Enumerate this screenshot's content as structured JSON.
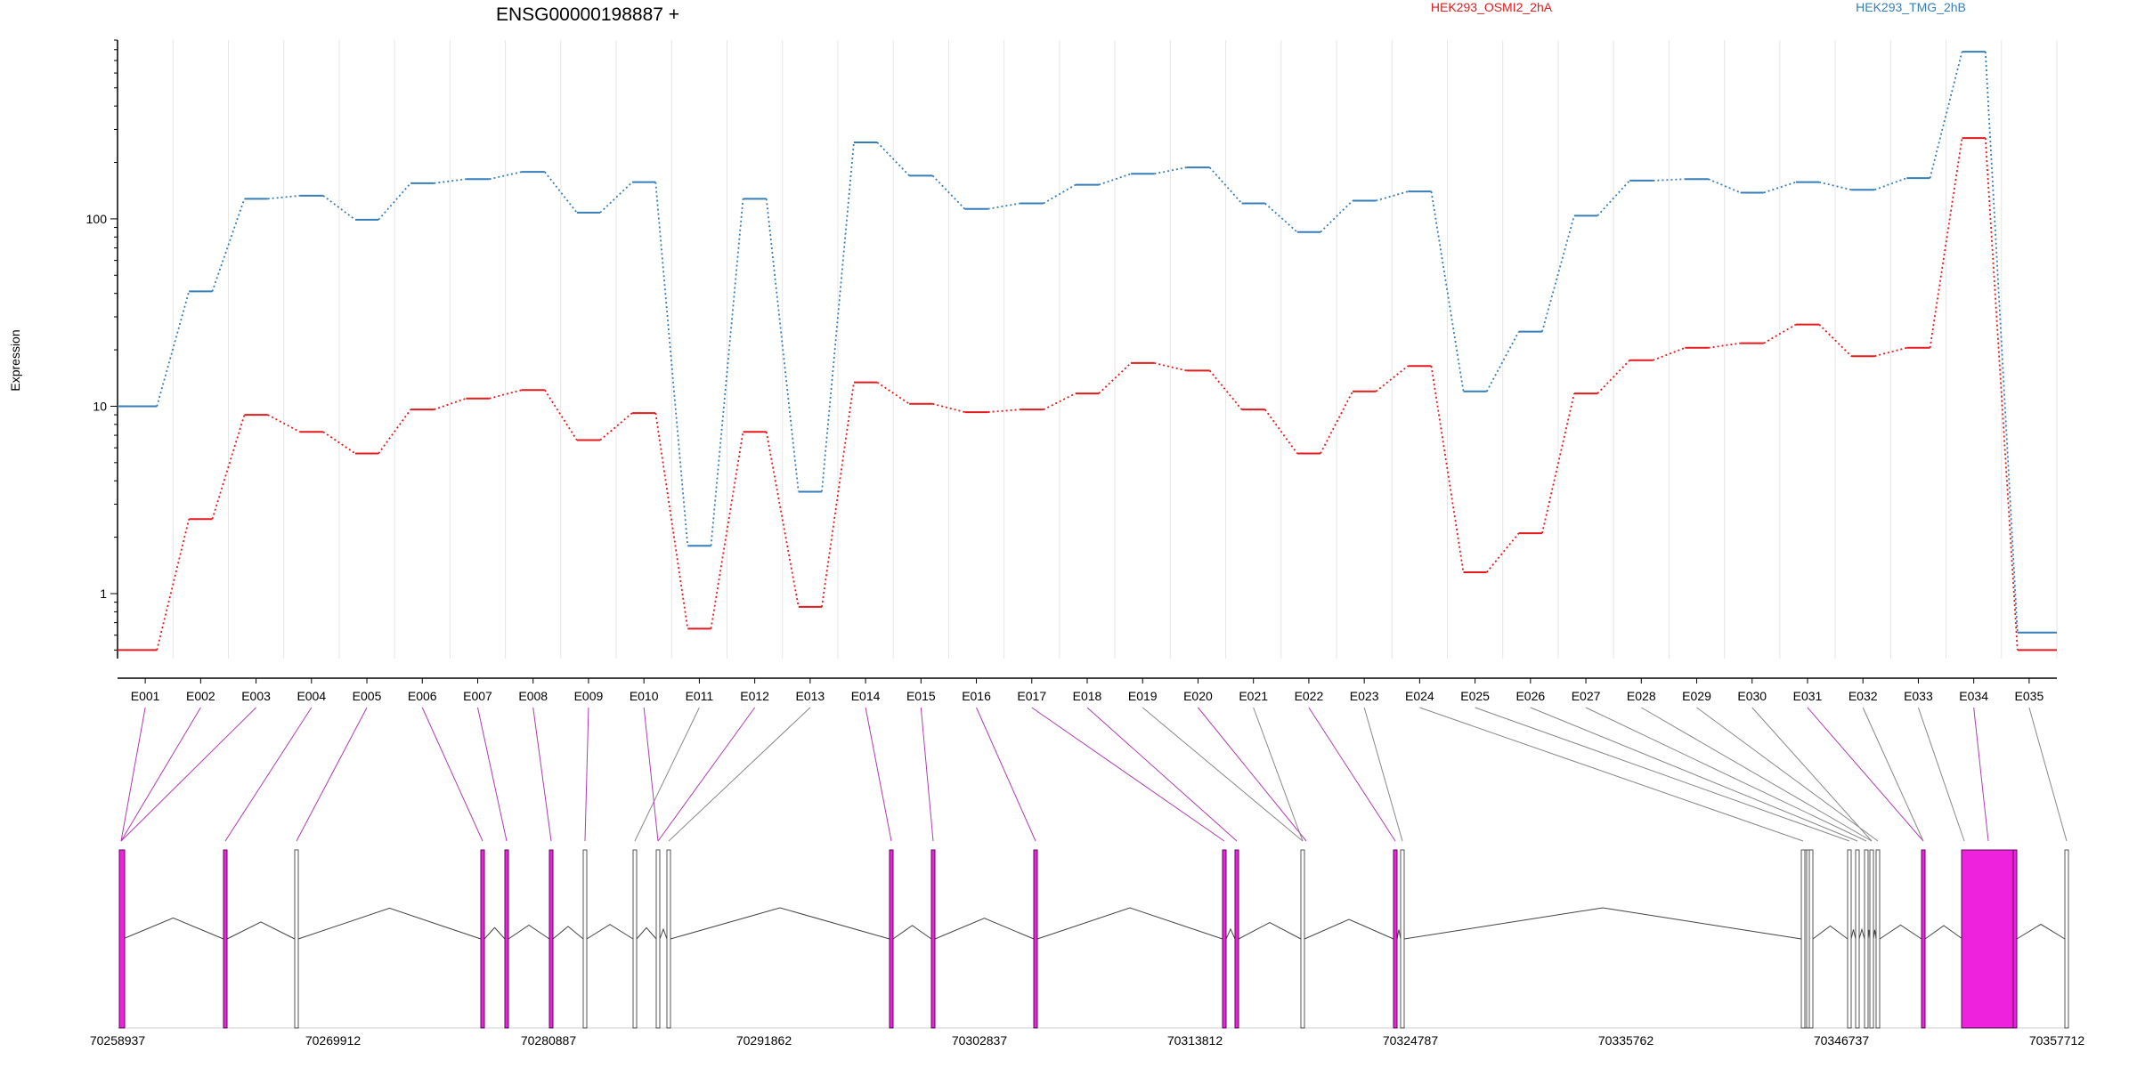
{
  "title": "ENSG00000198887 +",
  "chart_data": {
    "type": "line",
    "ylabel": "Expression",
    "yscale": "log",
    "ylim": [
      0.45,
      900
    ],
    "yticks": [
      1,
      10,
      100
    ],
    "ytick_labels": [
      "1",
      "10",
      "100"
    ],
    "grid": "vertical",
    "legend_placement": "top",
    "categories": [
      "E001",
      "E002",
      "E003",
      "E004",
      "E005",
      "E006",
      "E007",
      "E008",
      "E009",
      "E010",
      "E011",
      "E012",
      "E013",
      "E014",
      "E015",
      "E016",
      "E017",
      "E018",
      "E019",
      "E020",
      "E021",
      "E022",
      "E023",
      "E024",
      "E025",
      "E026",
      "E027",
      "E028",
      "E029",
      "E030",
      "E031",
      "E032",
      "E033",
      "E034",
      "E035"
    ],
    "series": [
      {
        "name": "HEK293_OSMI2_2hA",
        "color": "#e41a1c",
        "values": [
          0.5,
          2.5,
          9,
          7.3,
          5.6,
          9.6,
          11,
          12.2,
          6.6,
          9.2,
          0.65,
          7.3,
          0.85,
          13.4,
          10.3,
          9.3,
          9.6,
          11.7,
          17,
          15.5,
          9.6,
          5.6,
          12,
          16.4,
          1.3,
          2.1,
          11.7,
          17.6,
          20.5,
          21.7,
          27.3,
          18.5,
          20.5,
          270,
          0.5
        ]
      },
      {
        "name": "HEK293_TMG_2hB",
        "color": "#377eb8",
        "values": [
          10,
          41,
          128,
          133,
          99,
          155,
          163,
          178,
          108,
          157,
          1.8,
          128,
          3.5,
          256,
          170,
          113,
          121,
          152,
          174,
          188,
          121,
          85,
          125,
          140,
          12,
          25,
          104,
          160,
          163,
          138,
          157,
          143,
          165,
          780,
          0.62
        ]
      }
    ],
    "gene_model": {
      "coordinate_labels": [
        "70258937",
        "70269912",
        "70280887",
        "70291862",
        "70302837",
        "70313812",
        "70324787",
        "70335762",
        "70346737",
        "70357712"
      ]
    }
  }
}
